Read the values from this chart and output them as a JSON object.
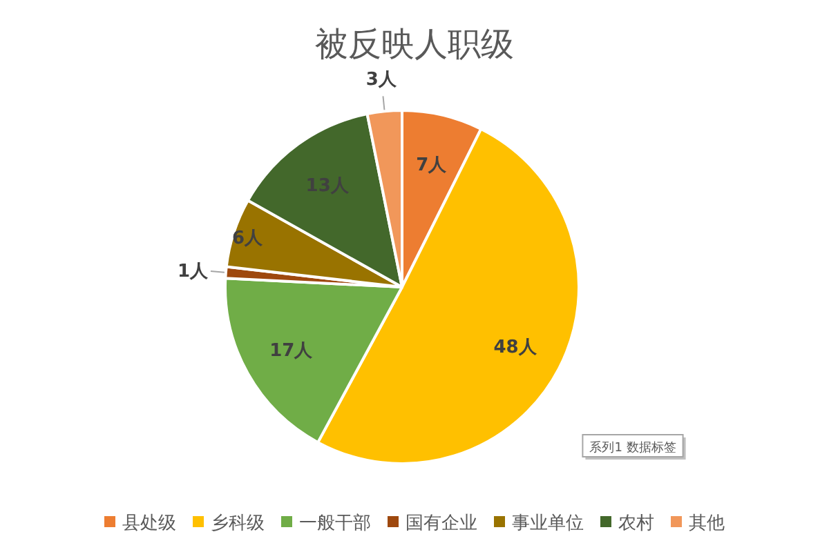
{
  "chart_data": {
    "type": "pie",
    "title": "被反映人职级",
    "categories": [
      "县处级",
      "乡科级",
      "一般干部",
      "国有企业",
      "事业单位",
      "农村",
      "其他"
    ],
    "values": [
      7,
      48,
      17,
      1,
      6,
      13,
      3
    ],
    "colors": [
      "#ed7d31",
      "#ffc000",
      "#70ad47",
      "#9e480e",
      "#997300",
      "#43682b",
      "#f1975a"
    ],
    "value_labels": [
      "7人",
      "48人",
      "17人",
      "1人",
      "6人",
      "13人",
      "3人"
    ],
    "legend": "bottom",
    "annotations": [
      "系列1 数据标签"
    ]
  }
}
